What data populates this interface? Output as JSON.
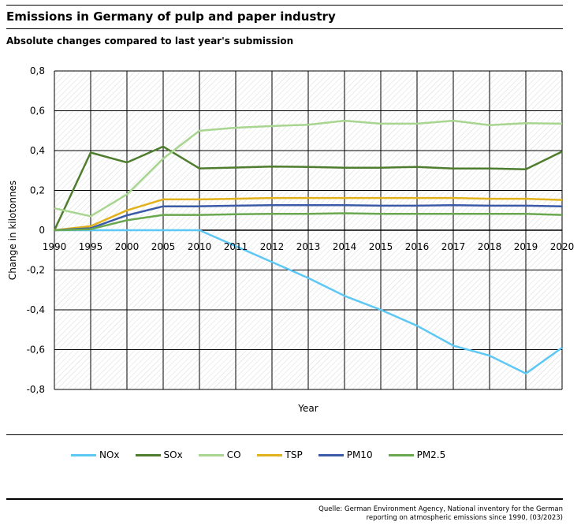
{
  "header": {
    "title": "Emissions in Germany of pulp and paper industry",
    "subtitle": "Absolute changes compared to last year's submission"
  },
  "source": {
    "line1": "Quelle: German Environment Agency, National inventory for the German",
    "line2": "reporting on atmospheric emissions since 1990, (03/2023)"
  },
  "chart_data": {
    "type": "line",
    "title": "Emissions in Germany of pulp and paper industry",
    "subtitle": "Absolute changes compared to last year's submission",
    "xlabel": "Year",
    "ylabel": "Change in kilotonnes",
    "x": [
      "1990",
      "1995",
      "2000",
      "2005",
      "2010",
      "2011",
      "2012",
      "2013",
      "2014",
      "2015",
      "2016",
      "2017",
      "2018",
      "2019",
      "2020"
    ],
    "ylim": [
      -0.8,
      0.8
    ],
    "yticks": [
      -0.8,
      -0.6,
      -0.4,
      -0.2,
      0,
      0.2,
      0.4,
      0.6,
      0.8
    ],
    "ytick_labels": [
      "-0,8",
      "-0,6",
      "-0,4",
      "-0,2",
      "0",
      "0,2",
      "0,4",
      "0,6",
      "0,8"
    ],
    "grid": true,
    "legend_position": "bottom",
    "series": [
      {
        "name": "NOx",
        "color": "#5ec8f5",
        "values": [
          0,
          0,
          0,
          0,
          0,
          -0.08,
          -0.16,
          -0.24,
          -0.33,
          -0.4,
          -0.48,
          -0.58,
          -0.63,
          -0.72,
          -0.59
        ]
      },
      {
        "name": "SOx",
        "color": "#4e7d2e",
        "values": [
          0,
          0.39,
          0.34,
          0.42,
          0.31,
          0.315,
          0.32,
          0.318,
          0.314,
          0.314,
          0.318,
          0.31,
          0.31,
          0.306,
          0.395
        ]
      },
      {
        "name": "CO",
        "color": "#a8d590",
        "values": [
          0.11,
          0.07,
          0.18,
          0.36,
          0.5,
          0.515,
          0.523,
          0.53,
          0.55,
          0.535,
          0.535,
          0.55,
          0.528,
          0.538,
          0.535
        ]
      },
      {
        "name": "TSP",
        "color": "#e2b21d",
        "values": [
          0,
          0.02,
          0.1,
          0.155,
          0.155,
          0.158,
          0.162,
          0.162,
          0.162,
          0.162,
          0.162,
          0.162,
          0.158,
          0.158,
          0.152
        ]
      },
      {
        "name": "PM10",
        "color": "#3b5ba8",
        "values": [
          0,
          0.01,
          0.075,
          0.12,
          0.12,
          0.123,
          0.126,
          0.126,
          0.126,
          0.123,
          0.123,
          0.126,
          0.123,
          0.123,
          0.12
        ]
      },
      {
        "name": "PM2.5",
        "color": "#6aa84f",
        "values": [
          0,
          0.005,
          0.05,
          0.077,
          0.077,
          0.08,
          0.082,
          0.082,
          0.085,
          0.082,
          0.082,
          0.082,
          0.082,
          0.082,
          0.077
        ]
      }
    ]
  }
}
